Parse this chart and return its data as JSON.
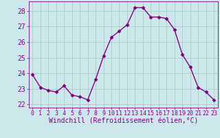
{
  "x": [
    0,
    1,
    2,
    3,
    4,
    5,
    6,
    7,
    8,
    9,
    10,
    11,
    12,
    13,
    14,
    15,
    16,
    17,
    18,
    19,
    20,
    21,
    22,
    23
  ],
  "y": [
    23.9,
    23.1,
    22.9,
    22.8,
    23.2,
    22.6,
    22.5,
    22.3,
    23.6,
    25.1,
    26.3,
    26.7,
    27.1,
    28.2,
    28.2,
    27.6,
    27.6,
    27.5,
    26.8,
    25.2,
    24.4,
    23.1,
    22.8,
    22.3
  ],
  "line_color": "#800080",
  "marker": "D",
  "marker_size": 2.5,
  "line_width": 1.0,
  "bg_color": "#cce8ea",
  "grid_color": "#aacccc",
  "xlabel": "Windchill (Refroidissement éolien,°C)",
  "xlabel_fontsize": 7,
  "tick_fontsize": 7,
  "ylim": [
    21.8,
    28.6
  ],
  "yticks": [
    22,
    23,
    24,
    25,
    26,
    27,
    28
  ],
  "xlim": [
    -0.5,
    23.5
  ],
  "xticks": [
    0,
    1,
    2,
    3,
    4,
    5,
    6,
    7,
    8,
    9,
    10,
    11,
    12,
    13,
    14,
    15,
    16,
    17,
    18,
    19,
    20,
    21,
    22,
    23
  ]
}
